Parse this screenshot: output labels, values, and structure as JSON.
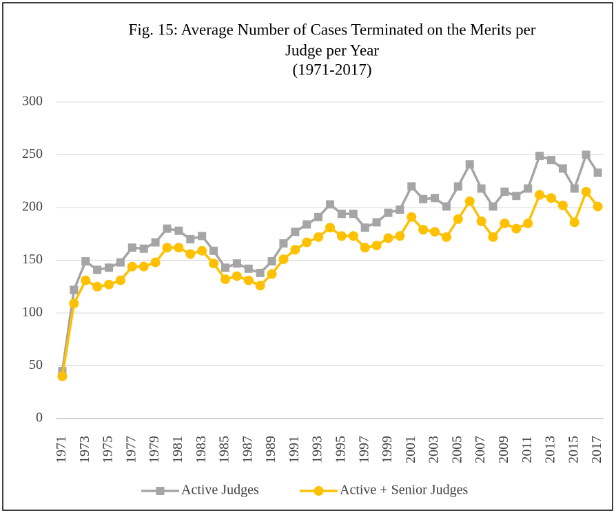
{
  "chart_data": {
    "type": "line",
    "title": [
      "Fig. 15: Average Number of Cases Terminated on the Merits per",
      "Judge per Year",
      "(1971-2017)"
    ],
    "categories": [
      "1971",
      null,
      "1973",
      null,
      "1975",
      null,
      "1977",
      null,
      "1979",
      null,
      "1981",
      null,
      "1983",
      null,
      "1985",
      null,
      "1987",
      null,
      "1989",
      null,
      "1991",
      null,
      "1993",
      null,
      "1995",
      null,
      "1997",
      null,
      "1999",
      null,
      "2001",
      null,
      "2003",
      null,
      "2005",
      null,
      "2007",
      null,
      "2009",
      null,
      "2011",
      null,
      "2013",
      null,
      "2015",
      null,
      "2017"
    ],
    "series": [
      {
        "name": "Active Judges",
        "color": "#a5a5a5",
        "marker": "square",
        "values": [
          45,
          122,
          149,
          141,
          143,
          148,
          162,
          161,
          167,
          180,
          178,
          170,
          173,
          159,
          143,
          147,
          142,
          138,
          149,
          166,
          177,
          184,
          191,
          203,
          194,
          194,
          181,
          186,
          195,
          198,
          220,
          208,
          209,
          201,
          220,
          241,
          218,
          201,
          215,
          211,
          218,
          249,
          245,
          237,
          218,
          250,
          233
        ]
      },
      {
        "name": "Active + Senior Judges",
        "color": "#ffc000",
        "marker": "circle",
        "values": [
          40,
          109,
          131,
          125,
          127,
          131,
          144,
          144,
          148,
          162,
          162,
          156,
          159,
          147,
          132,
          135,
          131,
          126,
          137,
          151,
          160,
          167,
          172,
          181,
          173,
          173,
          162,
          164,
          171,
          173,
          191,
          179,
          177,
          172,
          189,
          206,
          187,
          172,
          185,
          180,
          185,
          212,
          209,
          202,
          186,
          215,
          201
        ]
      }
    ],
    "ylim": [
      0,
      300
    ],
    "yticks": [
      0,
      50,
      100,
      150,
      200,
      250,
      300
    ],
    "grid": true,
    "legend": "bottom"
  }
}
